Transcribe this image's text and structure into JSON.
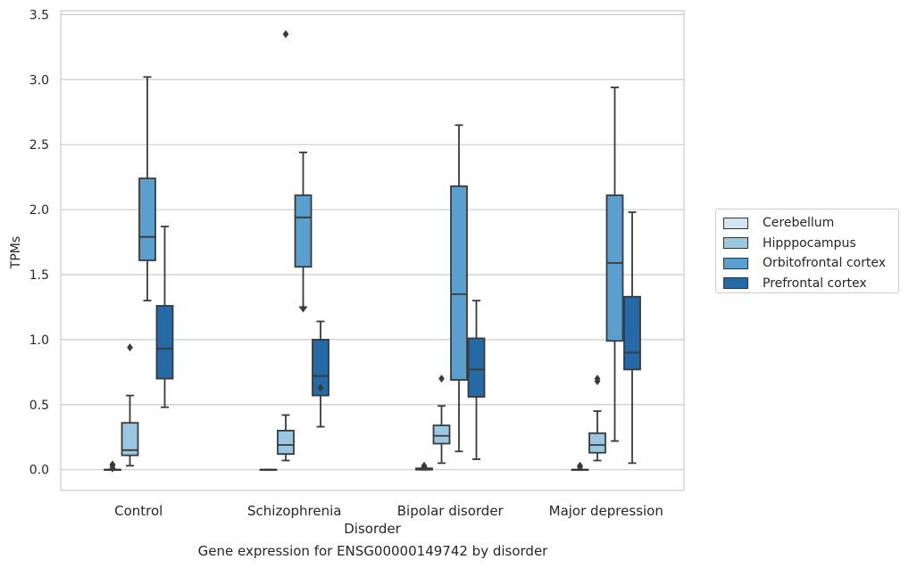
{
  "caption": "Gene expression for ENSG00000149742 by disorder",
  "chart_data": {
    "type": "box",
    "xlabel": "Disorder",
    "ylabel": "TPMs",
    "ylim": [
      -0.16,
      3.53
    ],
    "yticks": [
      0.0,
      0.5,
      1.0,
      1.5,
      2.0,
      2.5,
      3.0,
      3.5
    ],
    "ytick_labels": [
      "0.0",
      "0.5",
      "1.0",
      "1.5",
      "2.0",
      "2.5",
      "3.0",
      "3.5"
    ],
    "grid": true,
    "legend_position": "right",
    "categories": [
      "Control",
      "Schizophrenia",
      "Bipolar disorder",
      "Major depression"
    ],
    "series": [
      {
        "name": "Cerebellum",
        "color": "#d3e4f3",
        "boxes": [
          {
            "whislo": 0.0,
            "q1": 0.0,
            "med": 0.0,
            "q3": 0.0,
            "whishi": 0.0,
            "fliers": [
              0.01,
              0.03,
              0.04
            ]
          },
          {
            "whislo": 0.0,
            "q1": 0.0,
            "med": 0.0,
            "q3": 0.0,
            "whishi": 0.0,
            "fliers": []
          },
          {
            "whislo": 0.0,
            "q1": 0.0,
            "med": 0.0,
            "q3": 0.01,
            "whishi": 0.01,
            "fliers": [
              0.02,
              0.03
            ]
          },
          {
            "whislo": 0.0,
            "q1": 0.0,
            "med": 0.0,
            "q3": 0.0,
            "whishi": 0.0,
            "fliers": [
              0.02,
              0.03
            ]
          }
        ]
      },
      {
        "name": "Hipppocampus",
        "color": "#9ac8e0",
        "boxes": [
          {
            "whislo": 0.03,
            "q1": 0.11,
            "med": 0.15,
            "q3": 0.36,
            "whishi": 0.57,
            "fliers": [
              0.94
            ]
          },
          {
            "whislo": 0.07,
            "q1": 0.12,
            "med": 0.19,
            "q3": 0.3,
            "whishi": 0.42,
            "fliers": [
              3.35
            ]
          },
          {
            "whislo": 0.05,
            "q1": 0.2,
            "med": 0.26,
            "q3": 0.34,
            "whishi": 0.49,
            "fliers": [
              0.7
            ]
          },
          {
            "whislo": 0.07,
            "q1": 0.13,
            "med": 0.19,
            "q3": 0.28,
            "whishi": 0.45,
            "fliers": [
              0.68,
              0.7
            ]
          }
        ]
      },
      {
        "name": "Orbitofrontal cortex",
        "color": "#5a9fcd",
        "boxes": [
          {
            "whislo": 1.3,
            "q1": 1.61,
            "med": 1.79,
            "q3": 2.24,
            "whishi": 3.02,
            "fliers": []
          },
          {
            "whislo": 1.25,
            "q1": 1.56,
            "med": 1.94,
            "q3": 2.11,
            "whishi": 2.44,
            "fliers": [
              1.24
            ]
          },
          {
            "whislo": 0.14,
            "q1": 0.69,
            "med": 1.35,
            "q3": 2.18,
            "whishi": 2.65,
            "fliers": []
          },
          {
            "whislo": 0.22,
            "q1": 0.99,
            "med": 1.59,
            "q3": 2.11,
            "whishi": 2.94,
            "fliers": []
          }
        ]
      },
      {
        "name": "Prefrontal cortex",
        "color": "#2669a7",
        "boxes": [
          {
            "whislo": 0.48,
            "q1": 0.7,
            "med": 0.93,
            "q3": 1.26,
            "whishi": 1.87,
            "fliers": []
          },
          {
            "whislo": 0.33,
            "q1": 0.57,
            "med": 0.72,
            "q3": 1.0,
            "whishi": 1.14,
            "fliers": [
              0.63
            ]
          },
          {
            "whislo": 0.08,
            "q1": 0.56,
            "med": 0.77,
            "q3": 1.01,
            "whishi": 1.3,
            "fliers": []
          },
          {
            "whislo": 0.05,
            "q1": 0.77,
            "med": 0.9,
            "q3": 1.33,
            "whishi": 1.98,
            "fliers": []
          }
        ]
      }
    ]
  }
}
